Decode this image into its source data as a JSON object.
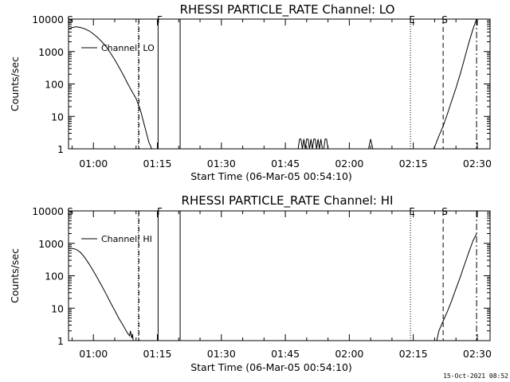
{
  "chart_data": [
    {
      "type": "line",
      "title": "RHESSI PARTICLE_RATE Channel: LO",
      "xlabel": "Start Time (06-Mar-05 00:54:10)",
      "ylabel": "Counts/sec",
      "y_scale": "log",
      "ylim": [
        1,
        10000
      ],
      "xlim": [
        "00:54:10",
        "02:33:00"
      ],
      "x_ticks": [
        "01:00",
        "01:15",
        "01:30",
        "01:45",
        "02:00",
        "02:15",
        "02:30"
      ],
      "y_ticks": [
        "1",
        "10",
        "100",
        "1000",
        "10000"
      ],
      "legend": "Channel: LO",
      "markers": [
        {
          "label": "S",
          "time": "00:54:10",
          "style": "solid"
        },
        {
          "label": "",
          "time": "01:10:30",
          "style": "dotted"
        },
        {
          "label": "",
          "time": "01:10:40",
          "style": "dashed"
        },
        {
          "label": "F",
          "time": "01:15:10",
          "style": "solid"
        },
        {
          "label": "",
          "time": "01:20:20",
          "style": "solid"
        },
        {
          "label": "E",
          "time": "02:14:20",
          "style": "dotted"
        },
        {
          "label": "S",
          "time": "02:22:00",
          "style": "dashed"
        },
        {
          "label": "",
          "time": "02:29:50",
          "style": "dashdot"
        }
      ],
      "series": [
        {
          "segments": [
            {
              "x": [
                "00:54:10",
                "00:55:00",
                "00:56:00",
                "00:57:00",
                "00:58:00",
                "00:59:00",
                "01:00:00",
                "01:01:00",
                "01:02:00",
                "01:03:00",
                "01:04:00",
                "01:05:00",
                "01:06:00",
                "01:07:00",
                "01:08:00",
                "01:09:00",
                "01:10:00",
                "01:11:00",
                "01:12:00",
                "01:13:00",
                "01:13:40"
              ],
              "y": [
                5000,
                5500,
                5800,
                5500,
                5000,
                4300,
                3500,
                2700,
                2000,
                1400,
                900,
                560,
                330,
                190,
                105,
                60,
                36,
                16,
                5,
                1.6,
                1
              ]
            },
            {
              "x": [
                "01:48:00",
                "01:48:20",
                "01:48:40",
                "01:49:00",
                "01:49:20",
                "01:49:40",
                "01:50:00",
                "01:50:20",
                "01:50:40",
                "01:51:00",
                "01:51:20",
                "01:51:40",
                "01:52:00",
                "01:52:20",
                "01:52:40",
                "01:53:00",
                "01:53:20",
                "01:53:40",
                "01:54:00",
                "01:54:20",
                "01:54:40",
                "01:55:00"
              ],
              "y": [
                1,
                2,
                2,
                1,
                2,
                1,
                2,
                2,
                1,
                2,
                1,
                2,
                2,
                1,
                2,
                1,
                2,
                1,
                1,
                2,
                2,
                1
              ]
            },
            {
              "x": [
                "02:04:30",
                "02:05:00",
                "02:05:30"
              ],
              "y": [
                1,
                2,
                1
              ]
            },
            {
              "x": [
                "02:19:50",
                "02:21:00",
                "02:22:00",
                "02:23:00",
                "02:24:00",
                "02:25:00",
                "02:26:00",
                "02:27:00",
                "02:28:00",
                "02:29:00",
                "02:29:50"
              ],
              "y": [
                1,
                2.5,
                5,
                12,
                30,
                75,
                200,
                600,
                1800,
                5000,
                10000
              ]
            }
          ]
        }
      ]
    },
    {
      "type": "line",
      "title": "RHESSI PARTICLE_RATE Channel: HI",
      "xlabel": "Start Time (06-Mar-05 00:54:10)",
      "ylabel": "Counts/sec",
      "y_scale": "log",
      "ylim": [
        1,
        10000
      ],
      "xlim": [
        "00:54:10",
        "02:33:00"
      ],
      "x_ticks": [
        "01:00",
        "01:15",
        "01:30",
        "01:45",
        "02:00",
        "02:15",
        "02:30"
      ],
      "y_ticks": [
        "1",
        "10",
        "100",
        "1000",
        "10000"
      ],
      "legend": "Channel: HI",
      "markers": [
        {
          "label": "S",
          "time": "00:54:10",
          "style": "solid"
        },
        {
          "label": "",
          "time": "01:10:30",
          "style": "dotted"
        },
        {
          "label": "",
          "time": "01:10:40",
          "style": "dashed"
        },
        {
          "label": "F",
          "time": "01:15:10",
          "style": "solid"
        },
        {
          "label": "",
          "time": "01:20:20",
          "style": "solid"
        },
        {
          "label": "E",
          "time": "02:14:20",
          "style": "dotted"
        },
        {
          "label": "S",
          "time": "02:22:00",
          "style": "dashed"
        },
        {
          "label": "",
          "time": "02:29:50",
          "style": "dashdot"
        }
      ],
      "series": [
        {
          "segments": [
            {
              "x": [
                "00:54:10",
                "00:55:00",
                "00:56:00",
                "00:57:00",
                "00:58:00",
                "00:59:00",
                "01:00:00",
                "01:01:00",
                "01:02:00",
                "01:03:00",
                "01:04:00",
                "01:05:00",
                "01:06:00",
                "01:07:00",
                "01:08:00",
                "01:08:30",
                "01:08:40",
                "01:09:00",
                "01:09:10",
                "01:09:20"
              ],
              "y": [
                700,
                700,
                650,
                520,
                360,
                230,
                140,
                82,
                48,
                27,
                15,
                8.5,
                4.8,
                2.9,
                1.7,
                1.4,
                2,
                1.2,
                1.6,
                1
              ]
            },
            {
              "x": [
                "02:20:30",
                "02:21:00",
                "02:22:00",
                "02:23:00",
                "02:24:00",
                "02:25:00",
                "02:26:00",
                "02:27:00",
                "02:28:00",
                "02:29:00",
                "02:29:50"
              ],
              "y": [
                1,
                2,
                4,
                8,
                17,
                40,
                90,
                220,
                520,
                1200,
                2000
              ]
            }
          ]
        }
      ]
    }
  ],
  "footer_timestamp": "15-Oct-2021 08:52"
}
